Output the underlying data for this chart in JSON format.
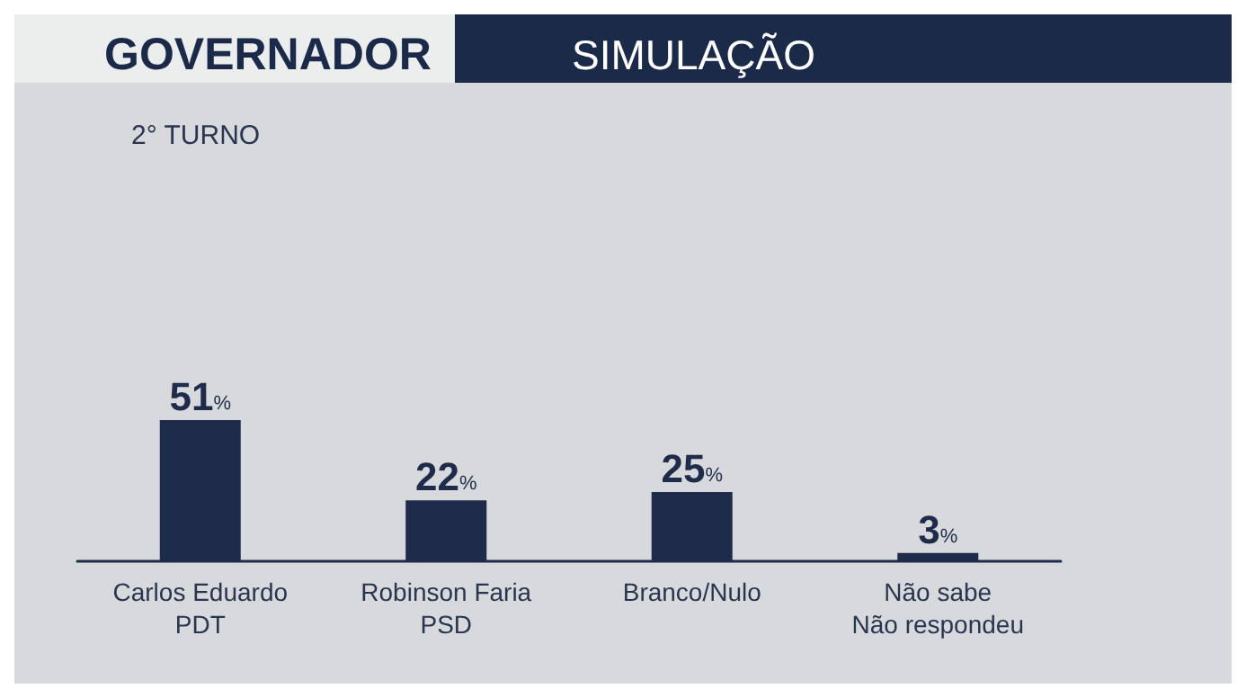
{
  "chart_data": {
    "type": "bar",
    "title": "GOVERNADOR",
    "subtitle": "SIMULAÇÃO",
    "annotations": [
      "2° TURNO"
    ],
    "categories": [
      "Carlos Eduardo\nPDT",
      "Robinson Faria\nPSD",
      "Branco/Nulo",
      "Não sabe\nNão respondeu"
    ],
    "values": [
      51,
      22,
      25,
      3
    ],
    "color": "#1f2b4a",
    "value_labels": [
      "51%",
      "22%",
      "25%",
      "3%"
    ]
  }
}
